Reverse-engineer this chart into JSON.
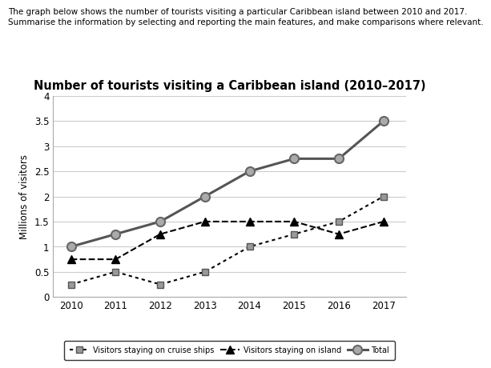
{
  "title": "Number of tourists visiting a Caribbean island (2010–2017)",
  "header_line1": "The graph below shows the number of tourists visiting a particular Caribbean island between 2010 and 2017.",
  "header_line2": "Summarise the information by selecting and reporting the main features, and make comparisons where relevant.",
  "years": [
    2010,
    2011,
    2012,
    2013,
    2014,
    2015,
    2016,
    2017
  ],
  "cruise_ships": [
    0.25,
    0.5,
    0.25,
    0.5,
    1.0,
    1.25,
    1.5,
    2.0
  ],
  "on_island": [
    0.75,
    0.75,
    1.25,
    1.5,
    1.5,
    1.5,
    1.25,
    1.5
  ],
  "total": [
    1.0,
    1.25,
    1.5,
    2.0,
    2.5,
    2.75,
    2.75,
    3.5
  ],
  "ylabel": "Millions of visitors",
  "ylim": [
    0,
    4
  ],
  "yticks": [
    0,
    0.5,
    1.0,
    1.5,
    2.0,
    2.5,
    3.0,
    3.5,
    4.0
  ],
  "xlim": [
    2009.6,
    2017.5
  ],
  "cruise_color": "#000000",
  "island_color": "#000000",
  "total_color": "#555555",
  "marker_gray": "#888888",
  "grid_color": "#cccccc",
  "legend_label_cruise": "Visitors staying on cruise ships",
  "legend_label_island": "Visitors staying on island",
  "legend_label_total": "Total",
  "title_fontsize": 10.5,
  "label_fontsize": 8.5,
  "tick_fontsize": 8.5,
  "header_fontsize": 7.5
}
